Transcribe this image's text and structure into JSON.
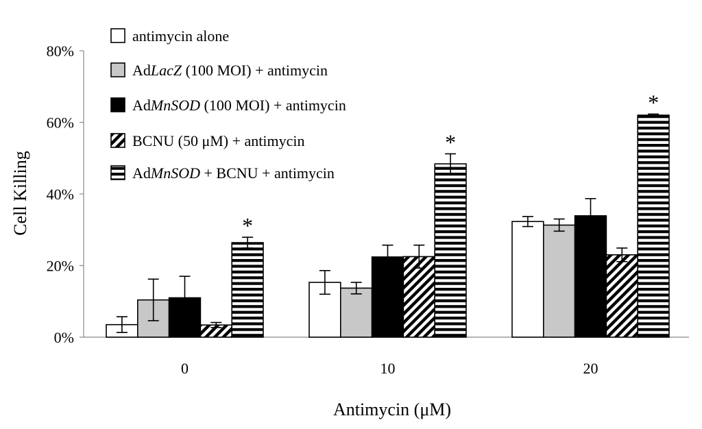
{
  "chart_data": {
    "type": "bar",
    "title": "",
    "xlabel": "Antimycin (μM)",
    "ylabel": "Cell Killing",
    "ylim": [
      0,
      80
    ],
    "yticks": [
      "0%",
      "20%",
      "40%",
      "60%",
      "80%"
    ],
    "categories": [
      "0",
      "10",
      "20"
    ],
    "series": [
      {
        "name": "antimycin alone",
        "legend_parts": [
          {
            "text": "antimycin alone",
            "italic": false
          }
        ],
        "pattern": "white",
        "values": [
          3.5,
          15.3,
          32.3
        ],
        "errors": [
          2.2,
          3.3,
          1.4
        ]
      },
      {
        "name": "AdLacZ (100 MOI) + antimycin",
        "legend_parts": [
          {
            "text": "Ad",
            "italic": false
          },
          {
            "text": "LacZ",
            "italic": true
          },
          {
            "text": " (100 MOI) + antimycin",
            "italic": false
          }
        ],
        "pattern": "gray",
        "values": [
          10.4,
          13.7,
          31.3
        ],
        "errors": [
          5.8,
          1.6,
          1.7
        ]
      },
      {
        "name": "AdMnSOD (100 MOI) + antimycin",
        "legend_parts": [
          {
            "text": "Ad",
            "italic": false
          },
          {
            "text": "MnSOD",
            "italic": true
          },
          {
            "text": " (100 MOI) + antimycin",
            "italic": false
          }
        ],
        "pattern": "black",
        "values": [
          11.0,
          22.4,
          33.9
        ],
        "errors": [
          6.0,
          3.3,
          4.8
        ]
      },
      {
        "name": "BCNU (50 μM) + antimycin",
        "legend_parts": [
          {
            "text": "BCNU (50 μM) + antimycin",
            "italic": false
          }
        ],
        "pattern": "diagonal",
        "values": [
          3.4,
          22.5,
          23.0
        ],
        "errors": [
          0.7,
          3.2,
          1.9
        ]
      },
      {
        "name": "AdMnSOD + BCNU + antimycin",
        "legend_parts": [
          {
            "text": "Ad",
            "italic": false
          },
          {
            "text": "MnSOD",
            "italic": true
          },
          {
            "text": " + BCNU + antimycin",
            "italic": false
          }
        ],
        "pattern": "horizontal",
        "values": [
          26.4,
          48.4,
          62.0
        ],
        "errors": [
          1.5,
          2.8,
          0.3
        ]
      }
    ],
    "annotations": [
      {
        "text": "*",
        "category": "0",
        "series": "AdMnSOD + BCNU + antimycin"
      },
      {
        "text": "*",
        "category": "10",
        "series": "AdMnSOD + BCNU + antimycin"
      },
      {
        "text": "*",
        "category": "20",
        "series": "AdMnSOD + BCNU + antimycin"
      }
    ],
    "legend_position": "top-left",
    "grid": false,
    "colors": {
      "white": "#ffffff",
      "gray": "#c8c8c8",
      "black": "#000000",
      "axis": "#888888"
    }
  }
}
